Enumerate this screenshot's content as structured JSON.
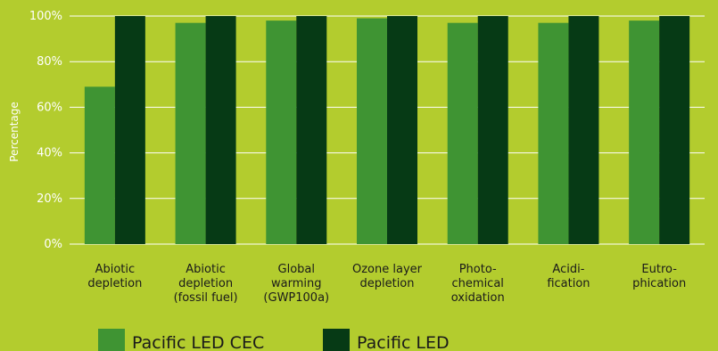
{
  "chart_data": {
    "type": "bar",
    "ylabel": "Percentage",
    "ylim": [
      0,
      100
    ],
    "yticks": [
      "0%",
      "20%",
      "40%",
      "60%",
      "80%",
      "100%"
    ],
    "grid": true,
    "legend_position": "bottom-left",
    "categories": [
      [
        "Abiotic",
        "depletion"
      ],
      [
        "Abiotic",
        "depletion",
        "(fossil fuel)"
      ],
      [
        "Global",
        "warming",
        "(GWP100a)"
      ],
      [
        "Ozone layer",
        "depletion"
      ],
      [
        "Photo-",
        "chemical",
        "oxidation"
      ],
      [
        "Acidi-",
        "fication"
      ],
      [
        "Eutro-",
        "phication"
      ]
    ],
    "series": [
      {
        "name": "Pacific LED CEC",
        "color": "#3f9433",
        "values": [
          69,
          97,
          98,
          99,
          97,
          97,
          98
        ]
      },
      {
        "name": "Pacific LED",
        "color": "#063a15",
        "values": [
          100,
          100,
          100,
          100,
          100,
          100,
          100
        ]
      }
    ]
  },
  "colors": {
    "background": "#b3cc2e",
    "grid": "#ffffff"
  }
}
